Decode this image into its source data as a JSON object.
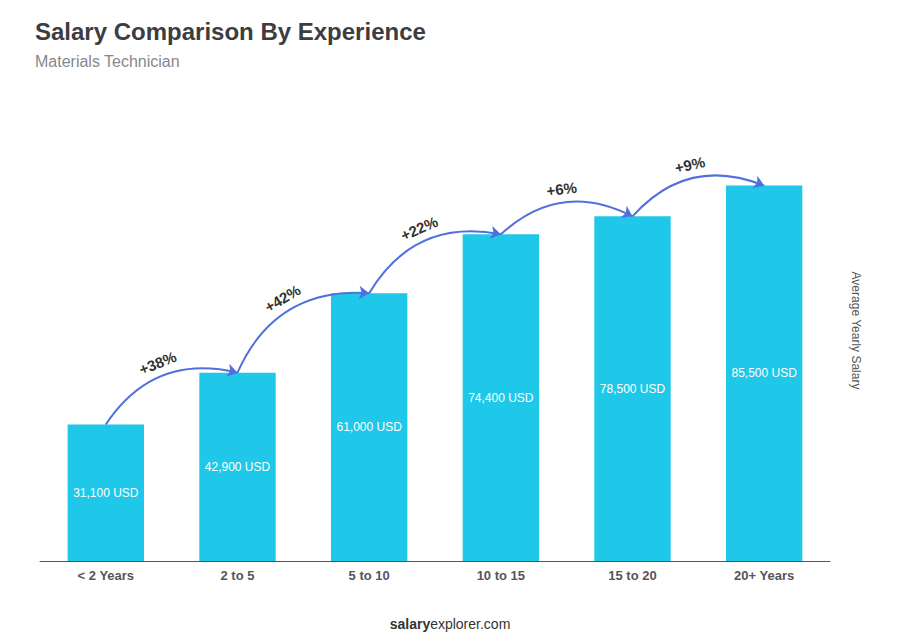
{
  "chart_data": {
    "type": "bar",
    "title": "Salary Comparison By Experience",
    "subtitle": "Materials Technician",
    "ylabel": "Average Yearly Salary",
    "categories": [
      "< 2 Years",
      "2 to 5",
      "5 to 10",
      "10 to 15",
      "15 to 20",
      "20+ Years"
    ],
    "values": [
      31100,
      42900,
      61000,
      74400,
      78500,
      85500
    ],
    "value_labels": [
      "31,100 USD",
      "42,900 USD",
      "61,000 USD",
      "74,400 USD",
      "78,500 USD",
      "85,500 USD"
    ],
    "data_labels": true,
    "annotations": [
      "+38%",
      "+42%",
      "+22%",
      "+6%",
      "+9%"
    ],
    "watermark": [
      "salary",
      "explorer.com"
    ],
    "color": "#1fc8e8",
    "ylim": [
      0,
      105000
    ],
    "tick_labels": "x",
    "grid": false
  }
}
